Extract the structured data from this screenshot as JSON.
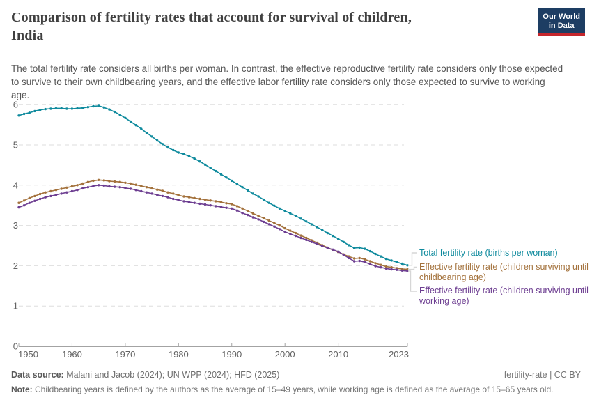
{
  "header": {
    "title_lines": [
      "Comparison of fertility rates that account for survival of children,",
      "India"
    ],
    "subtitle": "The total fertility rate considers all births per woman. In contrast, the effective reproductive fertility rate considers only those expected to survive to their own childbearing years, and the effective labor fertility rate considers only those expected to survive to working age.",
    "logo": {
      "line1": "Our World",
      "line2": "in Data",
      "bg_color": "#1d3d63",
      "accent_color": "#c5262c"
    }
  },
  "chart_data": {
    "type": "line",
    "title": "Comparison of fertility rates that account for survival of children, India",
    "xlabel": "",
    "ylabel": "",
    "ylim": [
      0,
      6
    ],
    "yticks": [
      0,
      1,
      2,
      3,
      4,
      5,
      6
    ],
    "xticks": [
      1950,
      1960,
      1970,
      1980,
      1990,
      2000,
      2010,
      2023
    ],
    "grid": "horizontal dashed",
    "legend_position": "right",
    "x": [
      1950,
      1951,
      1952,
      1953,
      1954,
      1955,
      1956,
      1957,
      1958,
      1959,
      1960,
      1961,
      1962,
      1963,
      1964,
      1965,
      1966,
      1967,
      1968,
      1969,
      1970,
      1971,
      1972,
      1973,
      1974,
      1975,
      1976,
      1977,
      1978,
      1979,
      1980,
      1981,
      1982,
      1983,
      1984,
      1985,
      1986,
      1987,
      1988,
      1989,
      1990,
      1991,
      1992,
      1993,
      1994,
      1995,
      1996,
      1997,
      1998,
      1999,
      2000,
      2001,
      2002,
      2003,
      2004,
      2005,
      2006,
      2007,
      2008,
      2009,
      2010,
      2011,
      2012,
      2013,
      2014,
      2015,
      2016,
      2017,
      2018,
      2019,
      2020,
      2021,
      2022,
      2023
    ],
    "series": [
      {
        "name": "Total fertility rate (births per woman)",
        "color": "#0e8a9d",
        "values": [
          5.73,
          5.77,
          5.8,
          5.84,
          5.87,
          5.89,
          5.9,
          5.91,
          5.91,
          5.9,
          5.9,
          5.91,
          5.92,
          5.94,
          5.96,
          5.97,
          5.93,
          5.88,
          5.82,
          5.75,
          5.67,
          5.58,
          5.49,
          5.4,
          5.3,
          5.21,
          5.11,
          5.02,
          4.94,
          4.87,
          4.81,
          4.77,
          4.72,
          4.66,
          4.59,
          4.51,
          4.43,
          4.35,
          4.27,
          4.19,
          4.11,
          4.03,
          3.95,
          3.87,
          3.79,
          3.72,
          3.64,
          3.56,
          3.49,
          3.42,
          3.36,
          3.3,
          3.24,
          3.17,
          3.1,
          3.03,
          2.96,
          2.89,
          2.81,
          2.74,
          2.67,
          2.59,
          2.51,
          2.44,
          2.45,
          2.42,
          2.36,
          2.29,
          2.23,
          2.17,
          2.13,
          2.09,
          2.05,
          2.01
        ]
      },
      {
        "name": "Effective fertility rate (children surviving until childbearing age)",
        "color": "#a3713b",
        "values": [
          3.56,
          3.62,
          3.68,
          3.73,
          3.78,
          3.82,
          3.85,
          3.88,
          3.91,
          3.94,
          3.97,
          4.0,
          4.04,
          4.08,
          4.11,
          4.13,
          4.12,
          4.1,
          4.09,
          4.08,
          4.06,
          4.04,
          4.01,
          3.98,
          3.95,
          3.92,
          3.89,
          3.86,
          3.82,
          3.79,
          3.75,
          3.72,
          3.7,
          3.68,
          3.66,
          3.64,
          3.62,
          3.6,
          3.58,
          3.55,
          3.53,
          3.48,
          3.42,
          3.36,
          3.3,
          3.24,
          3.18,
          3.12,
          3.06,
          3.0,
          2.93,
          2.87,
          2.81,
          2.75,
          2.69,
          2.63,
          2.57,
          2.51,
          2.45,
          2.39,
          2.34,
          2.28,
          2.23,
          2.18,
          2.19,
          2.16,
          2.11,
          2.06,
          2.02,
          1.98,
          1.96,
          1.94,
          1.92,
          1.91
        ]
      },
      {
        "name": "Effective fertility rate (children surviving until working age)",
        "color": "#6d3e91",
        "values": [
          3.45,
          3.5,
          3.56,
          3.61,
          3.66,
          3.7,
          3.73,
          3.76,
          3.79,
          3.82,
          3.85,
          3.88,
          3.92,
          3.95,
          3.98,
          4.0,
          3.99,
          3.97,
          3.96,
          3.95,
          3.93,
          3.91,
          3.88,
          3.85,
          3.82,
          3.79,
          3.76,
          3.73,
          3.7,
          3.66,
          3.63,
          3.6,
          3.58,
          3.56,
          3.54,
          3.52,
          3.5,
          3.48,
          3.46,
          3.44,
          3.42,
          3.37,
          3.31,
          3.26,
          3.2,
          3.15,
          3.09,
          3.03,
          2.97,
          2.91,
          2.84,
          2.79,
          2.74,
          2.69,
          2.64,
          2.59,
          2.54,
          2.49,
          2.44,
          2.4,
          2.35,
          2.27,
          2.19,
          2.11,
          2.12,
          2.09,
          2.04,
          1.99,
          1.96,
          1.93,
          1.91,
          1.9,
          1.88,
          1.87
        ]
      }
    ]
  },
  "legend": [
    {
      "label": "Total fertility rate (births per woman)",
      "color": "#0e8a9d"
    },
    {
      "label": "Effective fertility rate (children surviving until childbearing age)",
      "color": "#a3713b"
    },
    {
      "label": "Effective fertility rate (children surviving until working age)",
      "color": "#6d3e91"
    }
  ],
  "footer": {
    "datasource_label": "Data source:",
    "datasource": " Malani and Jacob (2024); UN WPP (2024); HFD (2025)",
    "license": "fertility-rate | CC BY",
    "note_label": "Note:",
    "note": " Childbearing years is defined by the authors as the average of 15–49 years, while working age is defined as the average of 15–65 years old."
  }
}
